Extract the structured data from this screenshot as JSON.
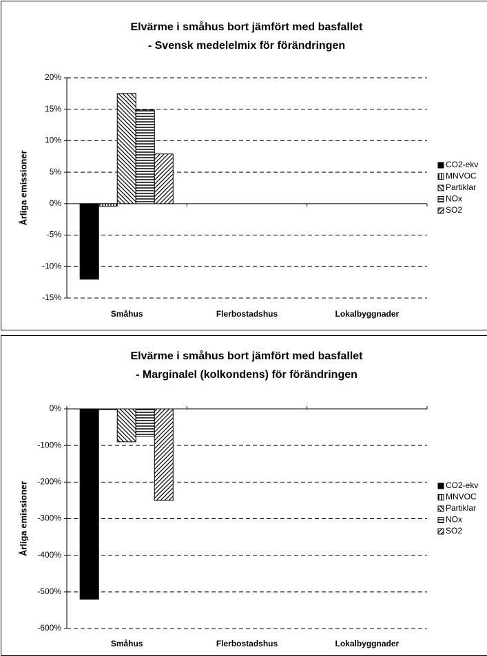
{
  "chart_data": [
    {
      "type": "bar",
      "title": [
        "Elvärme i småhus bort  jämfört med basfallet",
        "- Svensk medelelmix för förändringen"
      ],
      "ylabel": "Årliga emissioner",
      "categories": [
        "Småhus",
        "Flerbostadshus",
        "Lokalbyggnader"
      ],
      "series": [
        {
          "name": "CO2-ekv",
          "color": "#000000",
          "pattern": "solid",
          "values": [
            -12,
            null,
            null
          ]
        },
        {
          "name": "MNVOC",
          "color": "#000000",
          "pattern": "vertical",
          "values": [
            -0.4,
            null,
            null
          ]
        },
        {
          "name": "Partiklar",
          "color": "#000000",
          "pattern": "backslash",
          "values": [
            17.5,
            null,
            null
          ]
        },
        {
          "name": "NOx",
          "color": "#000000",
          "pattern": "horizontal",
          "values": [
            14.9,
            null,
            null
          ]
        },
        {
          "name": "SO2",
          "color": "#000000",
          "pattern": "slash",
          "values": [
            7.9,
            null,
            null
          ]
        }
      ],
      "ylim": [
        -15,
        20
      ],
      "yticks": [
        {
          "value": -15,
          "label": "-15%"
        },
        {
          "value": -10,
          "label": "-10%"
        },
        {
          "value": -5,
          "label": "-5%"
        },
        {
          "value": 0,
          "label": "0%"
        },
        {
          "value": 5,
          "label": "5%"
        },
        {
          "value": 10,
          "label": "10%"
        },
        {
          "value": 15,
          "label": "15%"
        },
        {
          "value": 20,
          "label": "20%"
        }
      ],
      "grid": true,
      "legend": "right"
    },
    {
      "type": "bar",
      "title": [
        "Elvärme i småhus bort jämfört med basfallet",
        "- Marginalel (kolkondens) för förändringen"
      ],
      "ylabel": "Årliga emissioner",
      "categories": [
        "Småhus",
        "Flerbostadshus",
        "Lokalbyggnader"
      ],
      "series": [
        {
          "name": "CO2-ekv",
          "color": "#000000",
          "pattern": "solid",
          "values": [
            -520,
            null,
            null
          ]
        },
        {
          "name": "MNVOC",
          "color": "#000000",
          "pattern": "vertical",
          "values": [
            -1,
            null,
            null
          ]
        },
        {
          "name": "Partiklar",
          "color": "#000000",
          "pattern": "backslash",
          "values": [
            -90,
            null,
            null
          ]
        },
        {
          "name": "NOx",
          "color": "#000000",
          "pattern": "horizontal",
          "values": [
            -75,
            null,
            null
          ]
        },
        {
          "name": "SO2",
          "color": "#000000",
          "pattern": "slash",
          "values": [
            -250,
            null,
            null
          ]
        }
      ],
      "ylim": [
        -600,
        0
      ],
      "yticks": [
        {
          "value": -600,
          "label": "-600%"
        },
        {
          "value": -500,
          "label": "-500%"
        },
        {
          "value": -400,
          "label": "-400%"
        },
        {
          "value": -300,
          "label": "-300%"
        },
        {
          "value": -200,
          "label": "-200%"
        },
        {
          "value": -100,
          "label": "-100%"
        },
        {
          "value": 0,
          "label": "0%"
        }
      ],
      "grid": true,
      "legend": "right"
    }
  ]
}
